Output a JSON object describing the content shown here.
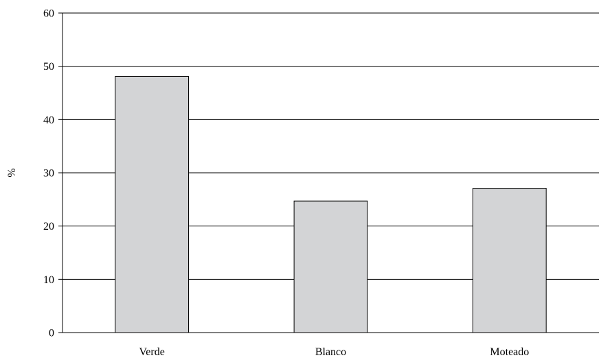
{
  "chart_data": {
    "type": "bar",
    "categories": [
      "Verde",
      "Blanco",
      "Moteado"
    ],
    "values": [
      48.1,
      24.7,
      27.1
    ],
    "title": "",
    "xlabel": "",
    "ylabel": "%",
    "ylim": [
      0,
      60
    ],
    "yticks": [
      0,
      10,
      20,
      30,
      40,
      50,
      60
    ],
    "grid": true,
    "legend": "none",
    "colors": {
      "bar_fill": "#d3d4d6",
      "bar_stroke": "#000000",
      "grid": "#000000",
      "axis": "#000000"
    }
  }
}
